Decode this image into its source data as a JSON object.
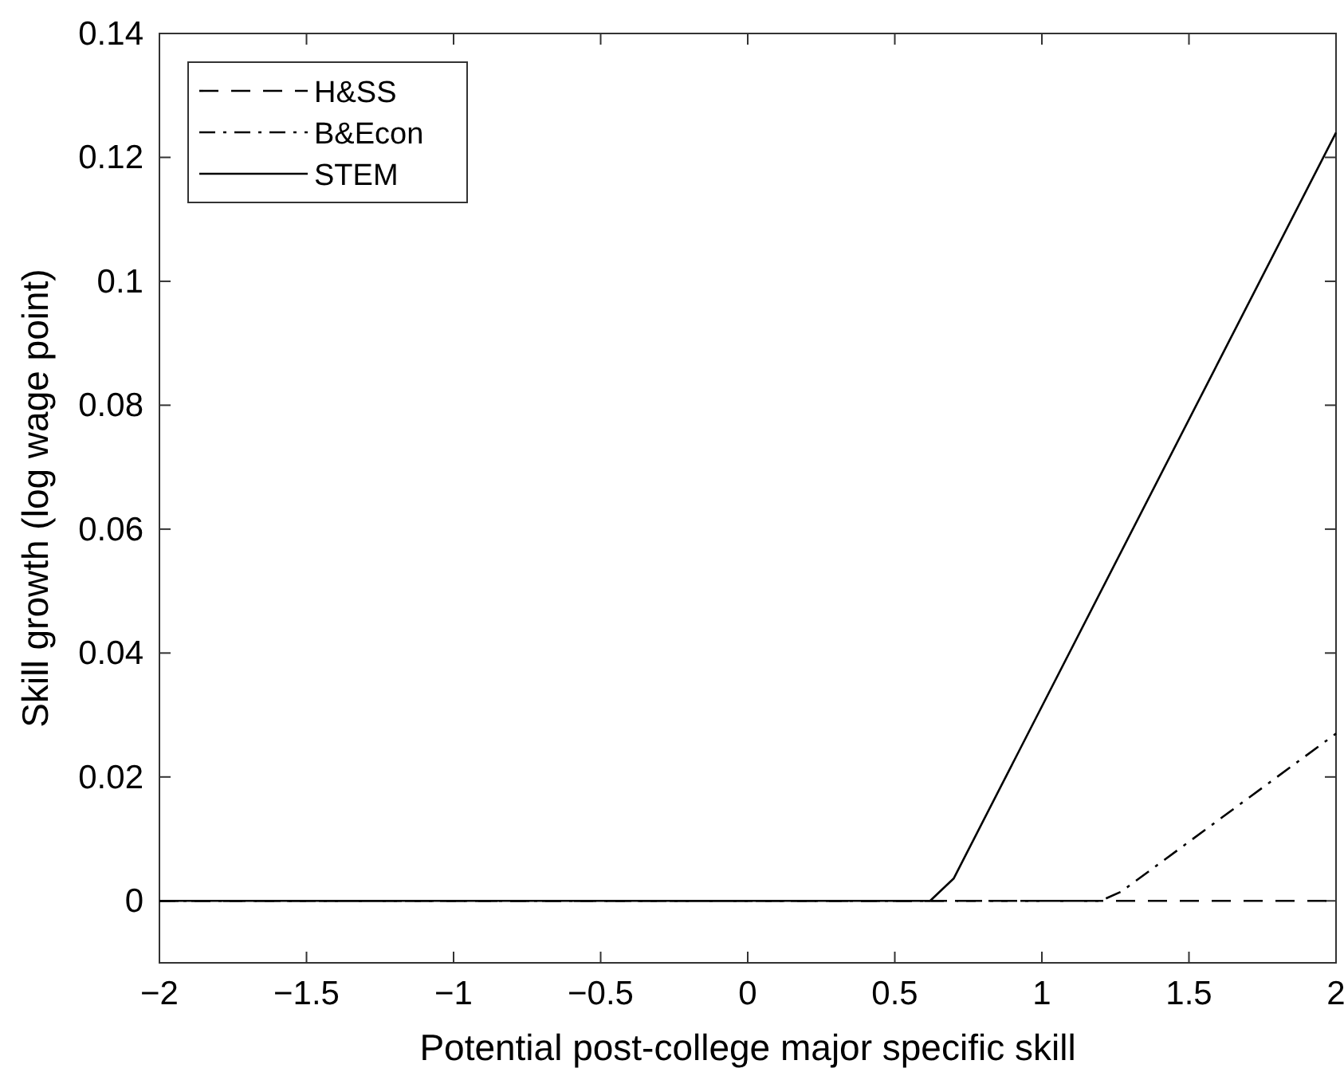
{
  "chart_data": {
    "type": "line",
    "xlabel": "Potential post-college major specific skill",
    "ylabel": "Skill growth (log wage point)",
    "xlim": [
      -2,
      2
    ],
    "xticks": [
      -2,
      -1.5,
      -1,
      -0.5,
      0,
      0.5,
      1,
      1.5,
      2
    ],
    "ylim": [
      -0.01,
      0.14
    ],
    "yticks": [
      0,
      0.02,
      0.04,
      0.06,
      0.08,
      0.1,
      0.12,
      0.14
    ],
    "legend": "top left",
    "grid": false,
    "series": [
      {
        "name": "H&SS",
        "color": "#000000",
        "line_style": "dashed",
        "x": [
          -2,
          2
        ],
        "values": [
          0,
          0
        ]
      },
      {
        "name": "B&Econ",
        "color": "#000000",
        "line_style": "dashdot",
        "x": [
          -2,
          1.2,
          1.27,
          2
        ],
        "values": [
          0,
          0,
          0.0015,
          0.027
        ]
      },
      {
        "name": "STEM",
        "color": "#000000",
        "line_style": "solid",
        "x": [
          -2,
          0.62,
          0.7,
          2
        ],
        "values": [
          0,
          0,
          0.0036,
          0.124
        ]
      }
    ]
  }
}
